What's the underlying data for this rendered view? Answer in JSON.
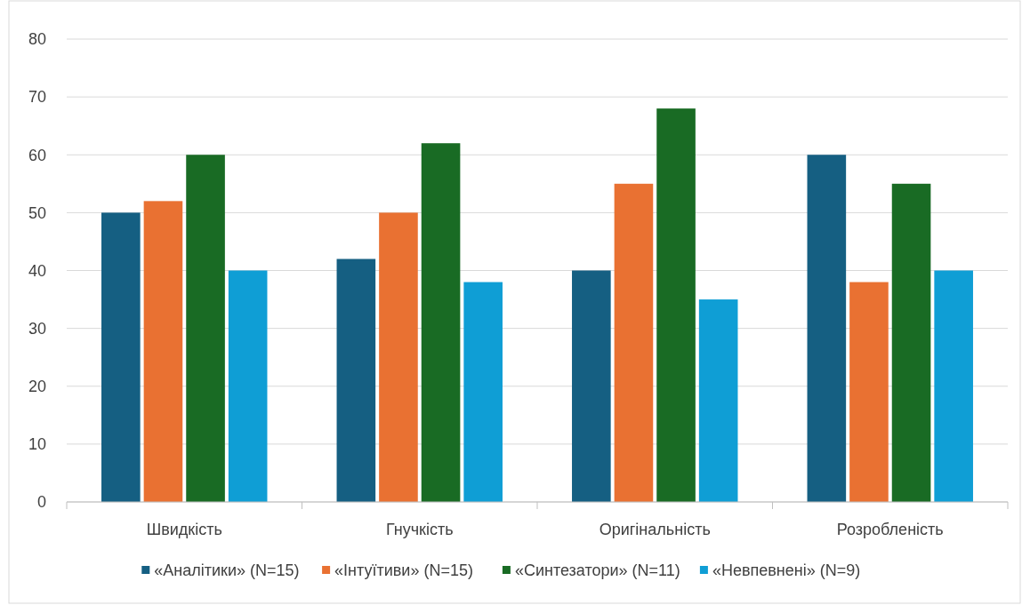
{
  "chart_data": {
    "type": "bar",
    "categories": [
      "Швидкість",
      "Гнучкість",
      "Оригінальність",
      "Розробленість"
    ],
    "series": [
      {
        "name": "«Аналітики» (N=15)",
        "color": "#155f82",
        "values": [
          50,
          42,
          40,
          60
        ]
      },
      {
        "name": "«Інтуїтиви» (N=15)",
        "color": "#e97132",
        "values": [
          52,
          50,
          55,
          38
        ]
      },
      {
        "name": "«Синтезатори» (N=11)",
        "color": "#196b24",
        "values": [
          60,
          62,
          68,
          55
        ]
      },
      {
        "name": "«Невпевнені» (N=9)",
        "color": "#0f9ed5",
        "values": [
          40,
          38,
          35,
          40
        ]
      }
    ],
    "ylim": [
      0,
      80
    ],
    "yticks": [
      0,
      10,
      20,
      30,
      40,
      50,
      60,
      70,
      80
    ],
    "grid": "y",
    "legend": "bottom"
  }
}
